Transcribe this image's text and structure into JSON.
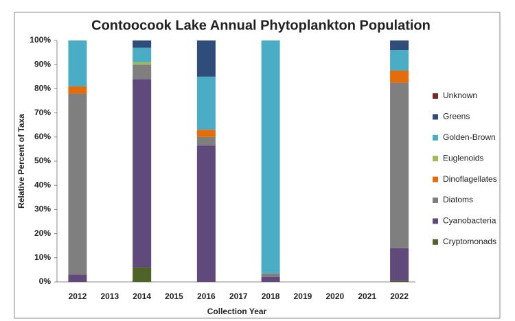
{
  "chart_data": {
    "type": "stacked_bar",
    "title": "Contoocook Lake Annual Phytoplankton Population",
    "x_label": "Collection Year",
    "y_label": "Relative Percent of Taxa",
    "categories": [
      "2012",
      "2013",
      "2014",
      "2015",
      "2016",
      "2017",
      "2018",
      "2019",
      "2020",
      "2021",
      "2022"
    ],
    "series": [
      {
        "name": "Cryptomonads",
        "color": "#4f6228",
        "values": [
          0,
          null,
          6,
          null,
          0,
          null,
          0,
          null,
          null,
          null,
          0.5
        ]
      },
      {
        "name": "Cyanobacteria",
        "color": "#604a7b",
        "values": [
          3,
          null,
          78,
          null,
          56.5,
          null,
          2,
          null,
          null,
          null,
          13.5
        ]
      },
      {
        "name": "Diatoms",
        "color": "#7f7f7f",
        "values": [
          75,
          null,
          6,
          null,
          3.5,
          null,
          1.5,
          null,
          null,
          null,
          68.5
        ]
      },
      {
        "name": "Dinoflagellates",
        "color": "#e46c0a",
        "values": [
          3,
          null,
          0,
          null,
          3,
          null,
          0,
          null,
          null,
          null,
          5
        ]
      },
      {
        "name": "Euglenoids",
        "color": "#9bbb59",
        "values": [
          0,
          null,
          1,
          null,
          0,
          null,
          0,
          null,
          null,
          null,
          0
        ]
      },
      {
        "name": "Golden-Brown",
        "color": "#4bacc6",
        "values": [
          19,
          null,
          6,
          null,
          22,
          null,
          96.5,
          null,
          null,
          null,
          8.5
        ]
      },
      {
        "name": "Greens",
        "color": "#2e4d7a",
        "values": [
          0,
          null,
          3,
          null,
          15,
          null,
          0,
          null,
          null,
          null,
          4
        ]
      },
      {
        "name": "Unknown",
        "color": "#7b2a2a",
        "values": [
          0,
          null,
          0,
          null,
          0,
          null,
          0,
          null,
          null,
          null,
          0
        ]
      }
    ],
    "ylim": [
      0,
      100
    ],
    "yticks": [
      {
        "value": 0,
        "label": "0%"
      },
      {
        "value": 10,
        "label": "10%"
      },
      {
        "value": 20,
        "label": "20%"
      },
      {
        "value": 30,
        "label": "30%"
      },
      {
        "value": 40,
        "label": "40%"
      },
      {
        "value": 50,
        "label": "50%"
      },
      {
        "value": 60,
        "label": "60%"
      },
      {
        "value": 70,
        "label": "70%"
      },
      {
        "value": 80,
        "label": "80%"
      },
      {
        "value": 90,
        "label": "90%"
      },
      {
        "value": 100,
        "label": "100%"
      }
    ],
    "grid": false,
    "legend": "right"
  }
}
